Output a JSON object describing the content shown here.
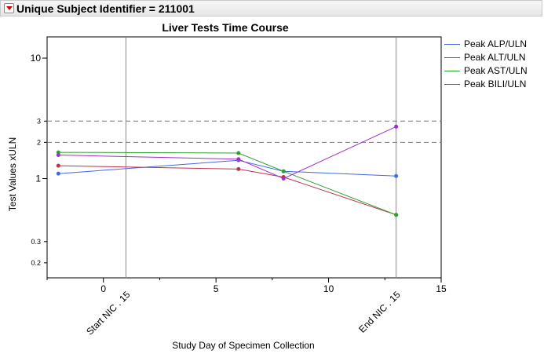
{
  "header": {
    "title": "Unique Subject Identifier = 211001"
  },
  "chart_data": {
    "type": "line",
    "title": "Liver Tests Time Course",
    "xlabel": "Study Day of Specimen Collection",
    "ylabel": "Test Values xULN",
    "xlim": [
      -2.5,
      15
    ],
    "ylim": [
      0.15,
      15
    ],
    "y_scale": "log",
    "x_ticks": [
      0,
      5,
      10,
      15
    ],
    "y_ticks": [
      0.2,
      0.3,
      1,
      2,
      3,
      10
    ],
    "reference_lines_y": [
      2,
      3
    ],
    "reference_lines_y_style": "dashed",
    "reference_lines_x": [
      {
        "x": 1,
        "label": "Start NIC . 15"
      },
      {
        "x": 13,
        "label": "End NIC . 15"
      }
    ],
    "x": [
      -2,
      6,
      8,
      13
    ],
    "series": [
      {
        "name": "Peak ALP/ULN",
        "color": "#4169e1",
        "values": [
          1.1,
          1.42,
          1.15,
          1.05
        ]
      },
      {
        "name": "Peak ALT/ULN",
        "color": "#c0314f",
        "values": [
          1.28,
          1.2,
          1.03,
          0.5
        ]
      },
      {
        "name": "Peak AST/ULN",
        "color": "#2ea02e",
        "values": [
          1.65,
          1.63,
          1.15,
          0.5
        ]
      },
      {
        "name": "Peak BILI/ULN",
        "color": "#a030c8",
        "values": [
          1.57,
          1.45,
          1.0,
          2.7
        ]
      }
    ],
    "grid": false,
    "legend_position": "right"
  }
}
